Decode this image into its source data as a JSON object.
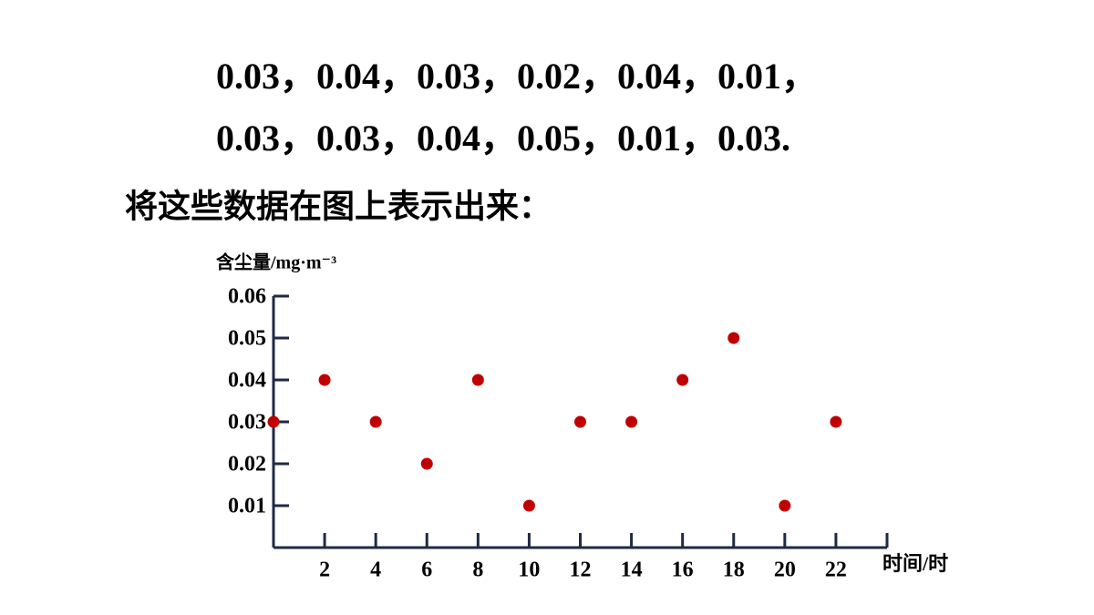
{
  "text_lines": [
    "0.03，0.04，0.03，0.02，0.04，0.01，",
    "0.03，0.03，0.04，0.05，0.01，0.03."
  ],
  "caption": "将这些数据在图上表示出来：",
  "chart_data": {
    "type": "scatter",
    "y_label": "含尘量/mg·m⁻³",
    "x_label": "时间/时",
    "x": [
      0,
      2,
      4,
      6,
      8,
      10,
      12,
      14,
      16,
      18,
      20,
      22
    ],
    "series": [
      {
        "color": "#c00000",
        "values": [
          0.03,
          0.04,
          0.03,
          0.02,
          0.04,
          0.01,
          0.03,
          0.03,
          0.04,
          0.05,
          0.01,
          0.03
        ]
      }
    ],
    "xlim": [
      0,
      24
    ],
    "ylim": [
      0,
      0.06
    ],
    "xticks": [
      2,
      4,
      6,
      8,
      10,
      12,
      14,
      16,
      18,
      20,
      22
    ],
    "yticks": [
      0.01,
      0.02,
      0.03,
      0.04,
      0.05,
      0.06
    ]
  }
}
